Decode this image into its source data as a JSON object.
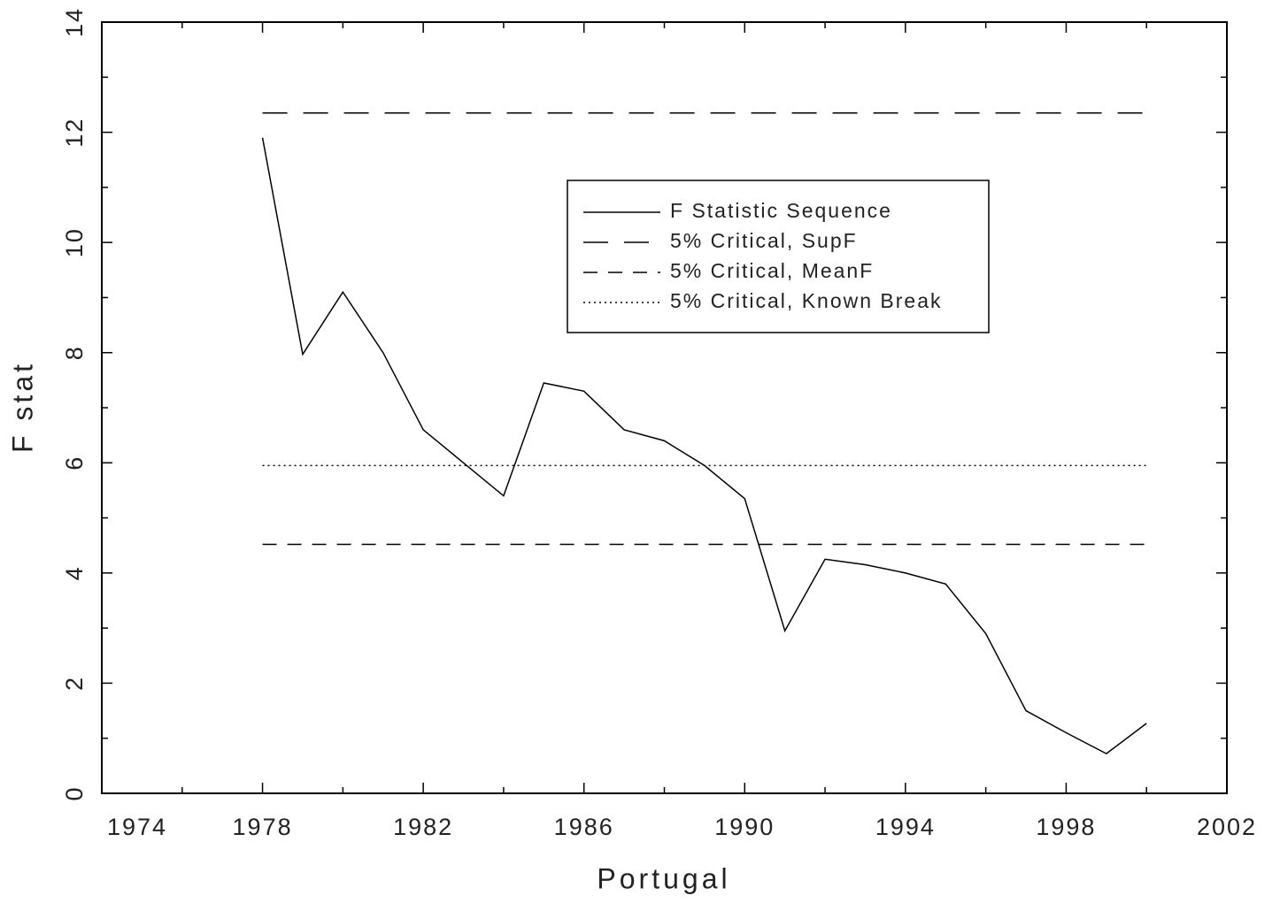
{
  "chart_data": {
    "type": "line",
    "xlabel": "Portugal",
    "ylabel": "F stat",
    "x": [
      1978,
      1979,
      1980,
      1981,
      1982,
      1983,
      1984,
      1985,
      1986,
      1987,
      1988,
      1989,
      1990,
      1991,
      1992,
      1993,
      1994,
      1995,
      1996,
      1997,
      1998,
      1999,
      2000
    ],
    "series": [
      {
        "name": "F Statistic Sequence",
        "color": "#000000",
        "dash": "solid",
        "values": [
          11.9,
          7.97,
          9.1,
          8.0,
          6.6,
          6.0,
          5.4,
          7.45,
          7.3,
          6.6,
          6.4,
          5.95,
          5.35,
          2.95,
          4.25,
          4.15,
          4.0,
          3.8,
          2.9,
          1.5,
          1.1,
          0.72,
          1.27
        ]
      },
      {
        "name": "5% Critical, SupF",
        "color": "#000000",
        "dash": "long",
        "values": [
          12.35,
          12.35,
          12.35,
          12.35,
          12.35,
          12.35,
          12.35,
          12.35,
          12.35,
          12.35,
          12.35,
          12.35,
          12.35,
          12.35,
          12.35,
          12.35,
          12.35,
          12.35,
          12.35,
          12.35,
          12.35,
          12.35,
          12.35
        ]
      },
      {
        "name": "5% Critical, MeanF",
        "color": "#000000",
        "dash": "short",
        "values": [
          4.52,
          4.52,
          4.52,
          4.52,
          4.52,
          4.52,
          4.52,
          4.52,
          4.52,
          4.52,
          4.52,
          4.52,
          4.52,
          4.52,
          4.52,
          4.52,
          4.52,
          4.52,
          4.52,
          4.52,
          4.52,
          4.52,
          4.52
        ]
      },
      {
        "name": "5% Critical, Known Break",
        "color": "#000000",
        "dash": "dotted",
        "values": [
          5.95,
          5.95,
          5.95,
          5.95,
          5.95,
          5.95,
          5.95,
          5.95,
          5.95,
          5.95,
          5.95,
          5.95,
          5.95,
          5.95,
          5.95,
          5.95,
          5.95,
          5.95,
          5.95,
          5.95,
          5.95,
          5.95,
          5.95
        ]
      }
    ],
    "xlim": [
      1974,
      2002
    ],
    "xticks": [
      1974,
      1978,
      1982,
      1986,
      1990,
      1994,
      1998,
      2002
    ],
    "xminor_ticks": [
      1976,
      1980,
      1984,
      1988,
      1992,
      1996,
      2000
    ],
    "ylim": [
      0,
      14
    ],
    "yticks": [
      0,
      2,
      4,
      6,
      8,
      10,
      12,
      14
    ],
    "yminor_ticks": [
      1,
      3,
      5,
      7,
      9,
      11,
      13
    ],
    "legend": "upper right",
    "grid": false
  }
}
